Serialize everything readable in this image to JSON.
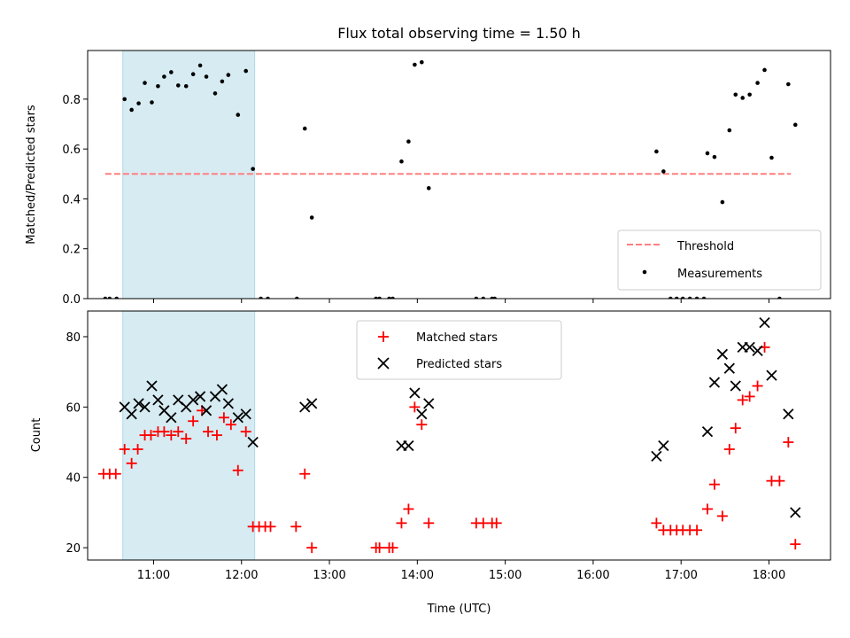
{
  "chart_data": [
    {
      "type": "scatter",
      "title": "Flux total observing time = 1.50 h",
      "xlabel": "",
      "ylabel": "Matched/Predicted stars",
      "xlim": [
        10.25,
        18.7
      ],
      "ylim": [
        0.0,
        0.995
      ],
      "yticks": [
        0.0,
        0.2,
        0.4,
        0.6,
        0.8
      ],
      "ytick_labels": [
        "0.0",
        "0.2",
        "0.4",
        "0.6",
        "0.8"
      ],
      "xtick_hours": [
        11,
        12,
        13,
        14,
        15,
        16,
        17,
        18
      ],
      "show_xtick_labels": false,
      "shaded_span": {
        "x_start": 10.65,
        "x_end": 12.15,
        "color": "#add8e6"
      },
      "threshold": {
        "name": "Threshold",
        "value": 0.5,
        "x_start": 10.45,
        "x_end": 18.25,
        "color": "#ff7f7f"
      },
      "legend": {
        "position": "lower-right",
        "entries": [
          "Threshold",
          "Measurements"
        ]
      },
      "series": [
        {
          "name": "Measurements",
          "marker": "dot",
          "color": "#000000",
          "points": [
            [
              10.45,
              0.0
            ],
            [
              10.5,
              0.0
            ],
            [
              10.58,
              0.0
            ],
            [
              10.67,
              0.8
            ],
            [
              10.75,
              0.757
            ],
            [
              10.83,
              0.783
            ],
            [
              10.9,
              0.865
            ],
            [
              10.98,
              0.787
            ],
            [
              11.05,
              0.852
            ],
            [
              11.12,
              0.89
            ],
            [
              11.2,
              0.908
            ],
            [
              11.28,
              0.855
            ],
            [
              11.37,
              0.852
            ],
            [
              11.45,
              0.9
            ],
            [
              11.53,
              0.935
            ],
            [
              11.6,
              0.89
            ],
            [
              11.7,
              0.823
            ],
            [
              11.78,
              0.871
            ],
            [
              11.85,
              0.897
            ],
            [
              11.96,
              0.737
            ],
            [
              12.05,
              0.913
            ],
            [
              12.13,
              0.52
            ],
            [
              12.22,
              0.0
            ],
            [
              12.3,
              0.0
            ],
            [
              12.63,
              0.0
            ],
            [
              12.72,
              0.682
            ],
            [
              12.8,
              0.325
            ],
            [
              13.53,
              0.0
            ],
            [
              13.57,
              0.0
            ],
            [
              13.68,
              0.0
            ],
            [
              13.72,
              0.0
            ],
            [
              13.82,
              0.55
            ],
            [
              13.9,
              0.63
            ],
            [
              13.97,
              0.938
            ],
            [
              14.05,
              0.948
            ],
            [
              14.13,
              0.443
            ],
            [
              14.67,
              0.0
            ],
            [
              14.75,
              0.0
            ],
            [
              14.85,
              0.0
            ],
            [
              14.88,
              0.0
            ],
            [
              16.72,
              0.59
            ],
            [
              16.8,
              0.51
            ],
            [
              16.88,
              0.0
            ],
            [
              16.95,
              0.0
            ],
            [
              17.02,
              0.0
            ],
            [
              17.1,
              0.0
            ],
            [
              17.18,
              0.0
            ],
            [
              17.26,
              0.0
            ],
            [
              17.3,
              0.583
            ],
            [
              17.38,
              0.568
            ],
            [
              17.47,
              0.387
            ],
            [
              17.55,
              0.675
            ],
            [
              17.62,
              0.818
            ],
            [
              17.7,
              0.805
            ],
            [
              17.78,
              0.818
            ],
            [
              17.87,
              0.865
            ],
            [
              17.95,
              0.917
            ],
            [
              18.03,
              0.565
            ],
            [
              18.12,
              0.0
            ],
            [
              18.22,
              0.86
            ],
            [
              18.3,
              0.697
            ]
          ]
        }
      ]
    },
    {
      "type": "scatter",
      "title": "",
      "xlabel": "Time (UTC)",
      "ylabel": "Count",
      "xlim": [
        10.25,
        18.7
      ],
      "ylim": [
        16.5,
        87.3
      ],
      "yticks": [
        20,
        40,
        60,
        80
      ],
      "ytick_labels": [
        "20",
        "40",
        "60",
        "80"
      ],
      "xtick_hours": [
        11,
        12,
        13,
        14,
        15,
        16,
        17,
        18
      ],
      "xtick_labels": [
        "11:00",
        "12:00",
        "13:00",
        "14:00",
        "15:00",
        "16:00",
        "17:00",
        "18:00"
      ],
      "shaded_span": {
        "x_start": 10.65,
        "x_end": 12.15,
        "color": "#add8e6"
      },
      "legend": {
        "position": "top-center",
        "entries": [
          "Matched stars",
          "Predicted stars"
        ]
      },
      "series": [
        {
          "name": "Matched stars",
          "marker": "plus",
          "color": "#ff0000",
          "points": [
            [
              10.43,
              41
            ],
            [
              10.5,
              41
            ],
            [
              10.57,
              41
            ],
            [
              10.67,
              48
            ],
            [
              10.75,
              44
            ],
            [
              10.82,
              48
            ],
            [
              10.9,
              52
            ],
            [
              10.97,
              52
            ],
            [
              11.05,
              53
            ],
            [
              11.12,
              53
            ],
            [
              11.2,
              52
            ],
            [
              11.28,
              53
            ],
            [
              11.37,
              51
            ],
            [
              11.45,
              56
            ],
            [
              11.55,
              59
            ],
            [
              11.62,
              53
            ],
            [
              11.72,
              52
            ],
            [
              11.8,
              57
            ],
            [
              11.88,
              55
            ],
            [
              11.96,
              42
            ],
            [
              12.05,
              53
            ],
            [
              12.13,
              26
            ],
            [
              12.2,
              26
            ],
            [
              12.27,
              26
            ],
            [
              12.33,
              26
            ],
            [
              12.62,
              26
            ],
            [
              12.72,
              41
            ],
            [
              12.8,
              20
            ],
            [
              13.53,
              20
            ],
            [
              13.57,
              20
            ],
            [
              13.68,
              20
            ],
            [
              13.72,
              20
            ],
            [
              13.82,
              27
            ],
            [
              13.9,
              31
            ],
            [
              13.97,
              60
            ],
            [
              14.05,
              55
            ],
            [
              14.13,
              27
            ],
            [
              14.67,
              27
            ],
            [
              14.75,
              27
            ],
            [
              14.85,
              27
            ],
            [
              14.9,
              27
            ],
            [
              16.72,
              27
            ],
            [
              16.8,
              25
            ],
            [
              16.88,
              25
            ],
            [
              16.95,
              25
            ],
            [
              17.02,
              25
            ],
            [
              17.1,
              25
            ],
            [
              17.18,
              25
            ],
            [
              17.3,
              31
            ],
            [
              17.38,
              38
            ],
            [
              17.47,
              29
            ],
            [
              17.55,
              48
            ],
            [
              17.62,
              54
            ],
            [
              17.7,
              62
            ],
            [
              17.78,
              63
            ],
            [
              17.87,
              66
            ],
            [
              17.95,
              77
            ],
            [
              18.03,
              39
            ],
            [
              18.12,
              39
            ],
            [
              18.22,
              50
            ],
            [
              18.3,
              21
            ]
          ]
        },
        {
          "name": "Predicted stars",
          "marker": "x",
          "color": "#000000",
          "points": [
            [
              10.67,
              60
            ],
            [
              10.75,
              58
            ],
            [
              10.83,
              61
            ],
            [
              10.9,
              60
            ],
            [
              10.98,
              66
            ],
            [
              11.05,
              62
            ],
            [
              11.12,
              59
            ],
            [
              11.2,
              57
            ],
            [
              11.28,
              62
            ],
            [
              11.37,
              60
            ],
            [
              11.45,
              62
            ],
            [
              11.53,
              63
            ],
            [
              11.6,
              59
            ],
            [
              11.7,
              63
            ],
            [
              11.78,
              65
            ],
            [
              11.85,
              61
            ],
            [
              11.96,
              57
            ],
            [
              12.05,
              58
            ],
            [
              12.13,
              50
            ],
            [
              12.72,
              60
            ],
            [
              12.8,
              61
            ],
            [
              13.82,
              49
            ],
            [
              13.9,
              49
            ],
            [
              13.97,
              64
            ],
            [
              14.05,
              58
            ],
            [
              14.13,
              61
            ],
            [
              16.72,
              46
            ],
            [
              16.8,
              49
            ],
            [
              17.3,
              53
            ],
            [
              17.38,
              67
            ],
            [
              17.47,
              75
            ],
            [
              17.55,
              71
            ],
            [
              17.62,
              66
            ],
            [
              17.7,
              77
            ],
            [
              17.78,
              77
            ],
            [
              17.87,
              76
            ],
            [
              17.95,
              84
            ],
            [
              18.03,
              69
            ],
            [
              18.22,
              58
            ],
            [
              18.3,
              30
            ]
          ]
        }
      ]
    }
  ]
}
